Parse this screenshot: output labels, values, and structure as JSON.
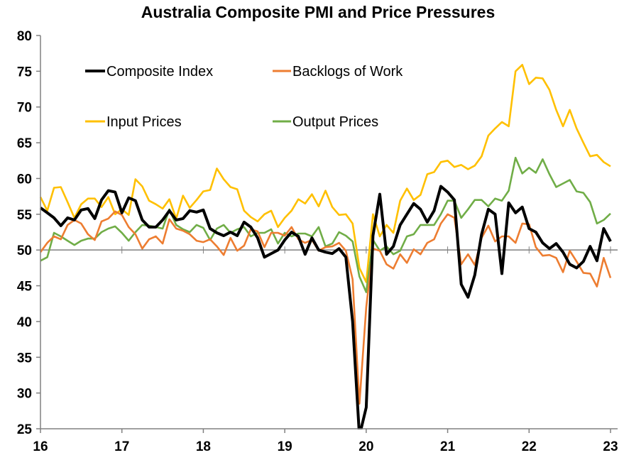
{
  "chart_data": {
    "type": "line",
    "title": "Australia Composite PMI and Price Pressures",
    "xlabel": "",
    "ylabel": "",
    "ylim": [
      25,
      80
    ],
    "yticks": [
      "25",
      "30",
      "35",
      "40",
      "45",
      "50",
      "55",
      "60",
      "65",
      "70",
      "75",
      "80"
    ],
    "xlim": [
      16,
      23
    ],
    "xticks": [
      "16",
      "17",
      "18",
      "19",
      "20",
      "21",
      "22",
      "23"
    ],
    "x_note": "monthly observations, x = year (2-digit) + month/12",
    "reference_line": 50,
    "legend_placement": "top-left (inside)",
    "grid": false,
    "series": [
      {
        "name": "Composite Index",
        "color": "#000000",
        "values": [
          55.9,
          55.2,
          54.5,
          53.4,
          54.5,
          54.2,
          55.6,
          55.8,
          54.4,
          57,
          58.3,
          58.1,
          55.2,
          57.3,
          56.9,
          54.2,
          53.2,
          53.2,
          54.2,
          55.5,
          54.2,
          54.4,
          55.5,
          55.3,
          55.6,
          53,
          52.4,
          52,
          52.5,
          52,
          53.9,
          53.2,
          51.7,
          49,
          49.5,
          50,
          51.4,
          52.5,
          51.9,
          49.4,
          51.7,
          50,
          49.7,
          49.5,
          50.2,
          49,
          40,
          24,
          28,
          52,
          57.8,
          49.4,
          50.5,
          53.5,
          55,
          56.5,
          55.7,
          53.9,
          55.5,
          58.9,
          58.1,
          57,
          45.2,
          43.4,
          46.5,
          52.2,
          55.7,
          55,
          46.7,
          56.6,
          55.2,
          56,
          53,
          52.5,
          51,
          50.2,
          50.9,
          49.7,
          48,
          47.5,
          48.4,
          50.5,
          48.5,
          53,
          51.2
        ]
      },
      {
        "name": "Backlogs of Work",
        "color": "#ED7D31",
        "values": [
          49.7,
          51,
          51.9,
          51.5,
          53.5,
          54.2,
          53.7,
          52.2,
          51.4,
          54,
          54.4,
          55.4,
          54.9,
          53.2,
          52.2,
          50.2,
          51.5,
          51.9,
          50.9,
          54.3,
          53,
          52.7,
          52.2,
          51.3,
          51.1,
          51.5,
          50.5,
          49.3,
          51.7,
          49.9,
          50.6,
          52.9,
          52.6,
          50.4,
          52.4,
          52.4,
          52,
          53.2,
          51.5,
          51,
          51.4,
          49.9,
          50.4,
          50.5,
          51,
          49.9,
          45.9,
          28.5,
          42,
          50.2,
          49.9,
          48,
          47.4,
          49.4,
          48.2,
          50.1,
          49.4,
          51,
          51.5,
          53.7,
          55,
          54.5,
          48,
          49.4,
          47.9,
          51.7,
          53.4,
          51.2,
          51.9,
          51.9,
          51,
          53.7,
          53.6,
          50.4,
          49.2,
          49.3,
          48.9,
          46.9,
          49.9,
          48.4,
          46.8,
          46.7,
          44.9,
          48.9,
          46.1
        ]
      },
      {
        "name": "Input Prices",
        "color": "#FFC000",
        "values": [
          57.4,
          55.5,
          58.7,
          58.8,
          56.7,
          54.5,
          56.4,
          57.2,
          57.2,
          56,
          57.4,
          55,
          55.7,
          54.9,
          59.9,
          58.9,
          56.9,
          56.4,
          55.8,
          57.1,
          54.4,
          57.6,
          55.9,
          57,
          58.2,
          58.4,
          61.4,
          59.9,
          58.8,
          58.5,
          55.5,
          54.6,
          54,
          55,
          55.5,
          53.2,
          54.5,
          55.5,
          57.1,
          56.5,
          57.8,
          56.1,
          58.3,
          56,
          54.9,
          55,
          53.7,
          47.5,
          45.5,
          55,
          51.9,
          53.5,
          52.4,
          56.9,
          58.6,
          57,
          57.7,
          60.6,
          60.9,
          62.3,
          62.5,
          61.6,
          61.9,
          61.3,
          61.8,
          63.1,
          66,
          67,
          67.9,
          67.3,
          75,
          75.9,
          73.2,
          74.1,
          74,
          72.4,
          69.6,
          67.3,
          69.6,
          67,
          65,
          63.1,
          63.3,
          62.3,
          61.7
        ]
      },
      {
        "name": "Output Prices",
        "color": "#70AD47",
        "values": [
          48.5,
          49,
          52.4,
          51.9,
          51.3,
          50.7,
          51.3,
          51.6,
          51.6,
          52.5,
          53,
          53.3,
          52.4,
          51.3,
          52.5,
          53.5,
          53.4,
          53.2,
          53,
          55.7,
          53.5,
          52.9,
          52.5,
          53.5,
          53.1,
          51.4,
          53,
          53.5,
          52.4,
          52.9,
          53.2,
          51.9,
          52.4,
          52.4,
          52.9,
          50.9,
          52.4,
          51.9,
          52.3,
          52.3,
          51.9,
          53.2,
          50.5,
          50.9,
          52.5,
          52,
          51.2,
          46.3,
          44.1,
          51.4,
          49.9,
          50.5,
          49.4,
          49.9,
          51.9,
          52.2,
          53.5,
          53.5,
          53.5,
          55,
          56.9,
          56.9,
          54.5,
          55.7,
          57,
          57,
          56.1,
          57.2,
          56.9,
          58.3,
          62.9,
          60.7,
          61.5,
          60.8,
          62.7,
          60.6,
          58.8,
          59.3,
          59.8,
          58.2,
          58,
          56.7,
          53.7,
          54.2,
          55.1
        ]
      }
    ]
  }
}
